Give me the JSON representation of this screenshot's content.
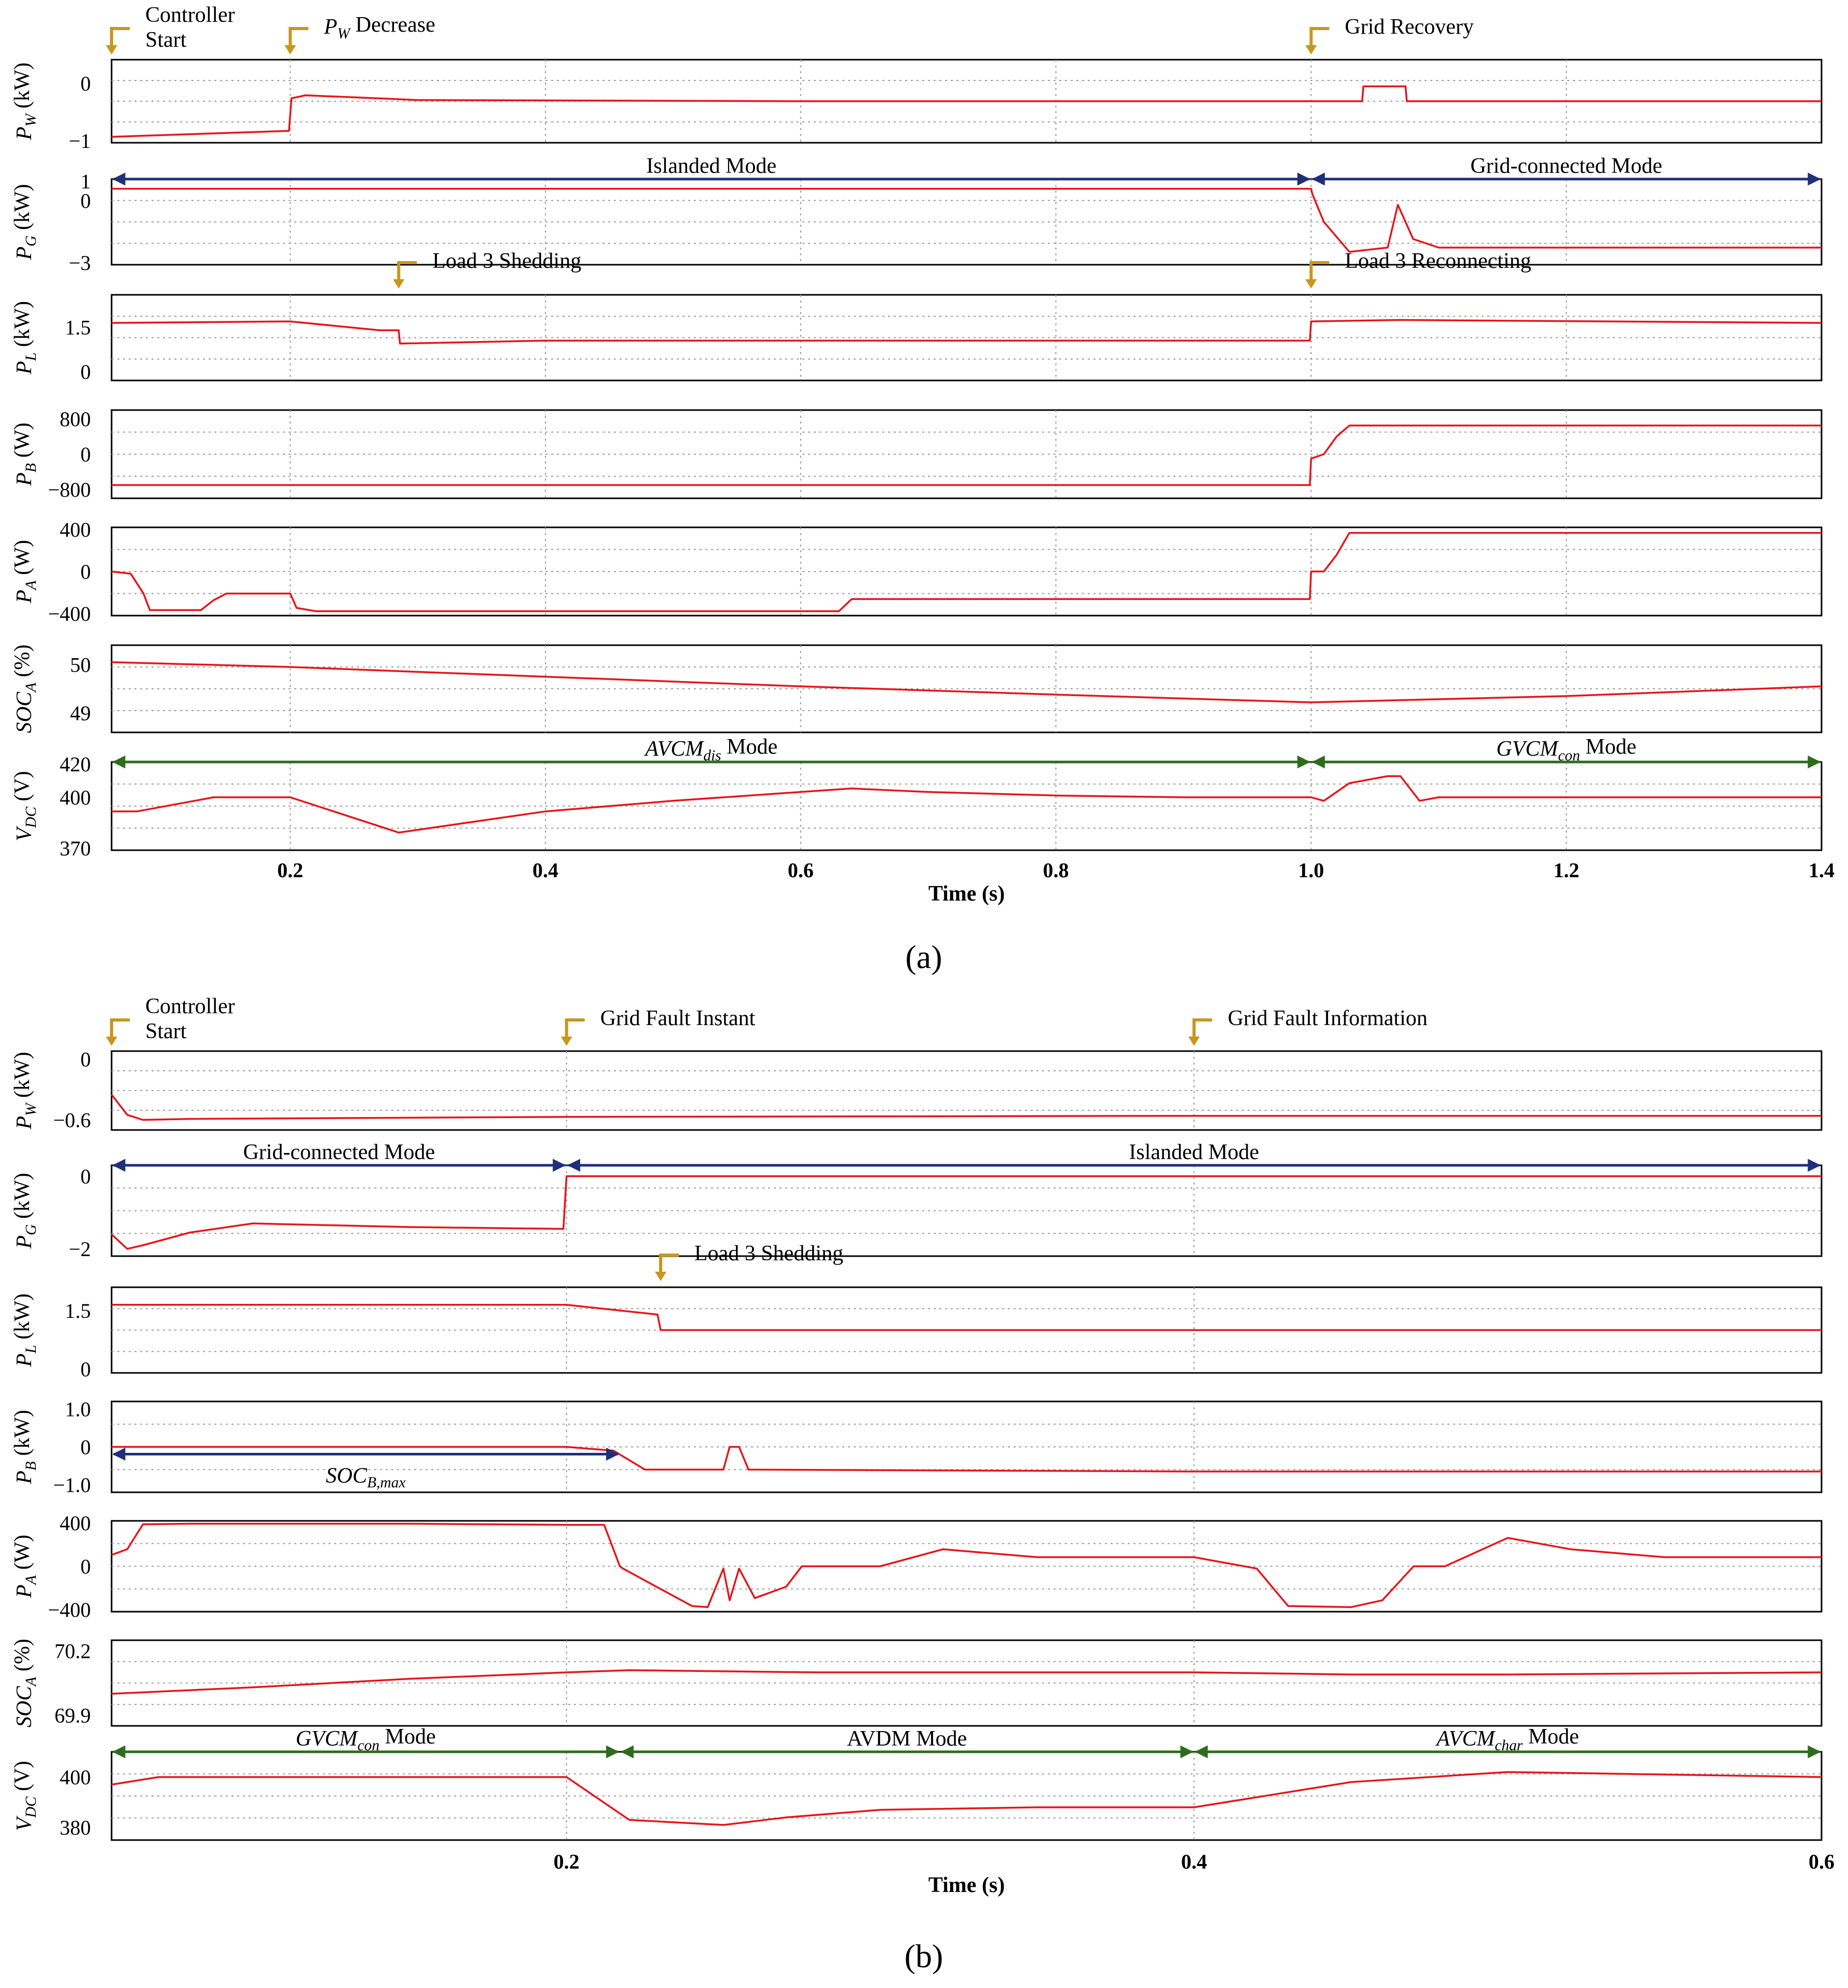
{
  "colors": {
    "trace": "#e8131a",
    "grid": "#9a9a9a",
    "navy": "#1f2f7a",
    "green": "#2e6b1d",
    "marker": "#c9961c"
  },
  "figure": {
    "panel_a_label": "(a)",
    "panel_b_label": "(b)"
  },
  "chart_data": [
    {
      "id": "a",
      "type": "line",
      "title": "",
      "xlabel": "Time (s)",
      "xlim": [
        0.06,
        1.4
      ],
      "xticks": [
        0.2,
        0.4,
        0.6,
        0.8,
        1.0,
        1.2,
        1.4
      ],
      "xtick_labels": [
        "0.2",
        "0.4",
        "0.6",
        "0.8",
        "1.0",
        "1.2",
        "1.4"
      ],
      "events": [
        {
          "label": "Controller\nStart",
          "x": 0.06
        },
        {
          "label": "P_W Decrease",
          "x": 0.2
        },
        {
          "label": "Grid Recovery",
          "x": 1.0
        },
        {
          "label": "Load 3 Shedding",
          "x": 0.285,
          "subplot": 2
        },
        {
          "label": "Load 3 Reconnecting",
          "x": 1.0,
          "subplot": 2
        }
      ],
      "subplots": [
        {
          "ylabel": "P_W (kW)",
          "ylim": [
            -1,
            0.4
          ],
          "yticks": [
            0,
            -1
          ],
          "ytick_labels": [
            "0",
            "−1"
          ],
          "series": [
            {
              "name": "P_W",
              "x": [
                0.06,
                0.199,
                0.201,
                0.212,
                0.3,
                0.6,
                1.0,
                1.04,
                1.041,
                1.074,
                1.075,
                1.4
              ],
              "y": [
                -0.9,
                -0.8,
                -0.25,
                -0.2,
                -0.28,
                -0.3,
                -0.3,
                -0.3,
                -0.05,
                -0.05,
                -0.3,
                -0.3
              ]
            }
          ]
        },
        {
          "ylabel": "P_G (kW)",
          "ylim": [
            -3,
            1
          ],
          "yticks": [
            1,
            0,
            -3
          ],
          "ytick_labels": [
            "1",
            "0",
            "−3"
          ],
          "modes": [
            {
              "label": "Islanded Mode",
              "x0": 0.06,
              "x1": 1.0,
              "color": "navy"
            },
            {
              "label": "Grid-connected Mode",
              "x0": 1.0,
              "x1": 1.4,
              "color": "navy"
            }
          ],
          "series": [
            {
              "name": "P_G",
              "x": [
                0.06,
                1.0,
                1.001,
                1.01,
                1.03,
                1.06,
                1.068,
                1.08,
                1.1,
                1.2,
                1.4
              ],
              "y": [
                0.55,
                0.55,
                0.3,
                -1.0,
                -2.4,
                -2.2,
                -0.2,
                -1.8,
                -2.2,
                -2.2,
                -2.2
              ]
            }
          ]
        },
        {
          "ylabel": "P_L (kW)",
          "ylim": [
            -0.3,
            2.6
          ],
          "yticks": [
            1.5,
            0
          ],
          "ytick_labels": [
            "1.5",
            "0"
          ],
          "series": [
            {
              "name": "P_L",
              "x": [
                0.06,
                0.2,
                0.27,
                0.285,
                0.286,
                0.4,
                0.6,
                0.999,
                1.0,
                1.07,
                1.4
              ],
              "y": [
                1.65,
                1.7,
                1.4,
                1.4,
                0.95,
                1.05,
                1.05,
                1.05,
                1.7,
                1.75,
                1.65
              ]
            }
          ]
        },
        {
          "ylabel": "P_B (W)",
          "ylim": [
            -1000,
            1000
          ],
          "yticks": [
            800,
            0,
            -800
          ],
          "ytick_labels": [
            "800",
            "0",
            "−800"
          ],
          "series": [
            {
              "name": "P_B",
              "x": [
                0.06,
                0.5,
                0.999,
                1.0,
                1.01,
                1.02,
                1.03,
                1.4
              ],
              "y": [
                -700,
                -700,
                -700,
                -100,
                0,
                400,
                650,
                650
              ]
            }
          ]
        },
        {
          "ylabel": "P_A (W)",
          "ylim": [
            -400,
            400
          ],
          "yticks": [
            400,
            0,
            -400
          ],
          "ytick_labels": [
            "400",
            "0",
            "−400"
          ],
          "series": [
            {
              "name": "P_A",
              "x": [
                0.06,
                0.075,
                0.085,
                0.09,
                0.13,
                0.14,
                0.15,
                0.2,
                0.205,
                0.22,
                0.5,
                0.63,
                0.64,
                0.999,
                1.0,
                1.01,
                1.02,
                1.03,
                1.4
              ],
              "y": [
                0,
                -20,
                -200,
                -350,
                -350,
                -260,
                -200,
                -200,
                -330,
                -360,
                -360,
                -360,
                -250,
                -250,
                0,
                0,
                150,
                350,
                350
              ]
            }
          ]
        },
        {
          "ylabel": "SOC_A (%)",
          "ylim": [
            48.6,
            50.4
          ],
          "yticks": [
            50,
            49
          ],
          "ytick_labels": [
            "50",
            "49"
          ],
          "series": [
            {
              "name": "SOC_A",
              "x": [
                0.06,
                0.2,
                0.4,
                0.6,
                0.8,
                1.0,
                1.2,
                1.4
              ],
              "y": [
                50.05,
                49.95,
                49.75,
                49.55,
                49.38,
                49.22,
                49.35,
                49.55
              ]
            }
          ]
        },
        {
          "ylabel": "V_DC (V)",
          "ylim": [
            370,
            420
          ],
          "yticks": [
            420,
            400,
            370
          ],
          "ytick_labels": [
            "420",
            "400",
            "370"
          ],
          "modes": [
            {
              "label": "AVCM_dis Mode",
              "x0": 0.06,
              "x1": 1.0,
              "color": "green"
            },
            {
              "label": "GVCM_con Mode",
              "x0": 1.0,
              "x1": 1.4,
              "color": "green"
            }
          ],
          "series": [
            {
              "name": "V_DC",
              "x": [
                0.06,
                0.08,
                0.14,
                0.2,
                0.285,
                0.4,
                0.5,
                0.6,
                0.64,
                0.7,
                0.8,
                0.9,
                1.0,
                1.01,
                1.03,
                1.06,
                1.07,
                1.085,
                1.1,
                1.4
              ],
              "y": [
                392,
                392,
                400,
                400,
                380,
                392,
                398,
                403,
                405,
                403,
                401,
                400,
                400,
                398,
                408,
                412,
                412,
                398,
                400,
                400
              ]
            }
          ]
        }
      ]
    },
    {
      "id": "b",
      "type": "line",
      "title": "",
      "xlabel": "Time (s)",
      "xlim": [
        0.055,
        0.6
      ],
      "xticks": [
        0.2,
        0.4,
        0.6
      ],
      "xtick_labels": [
        "0.2",
        "0.4",
        "0.6"
      ],
      "events": [
        {
          "label": "Controller\nStart",
          "x": 0.055
        },
        {
          "label": "Grid Fault Instant",
          "x": 0.2
        },
        {
          "label": "Grid Fault Information",
          "x": 0.4
        },
        {
          "label": "Load 3 Shedding",
          "x": 0.23,
          "subplot": 2
        }
      ],
      "subplots": [
        {
          "ylabel": "P_W (kW)",
          "ylim": [
            -0.7,
            0.08
          ],
          "yticks": [
            0,
            -0.6
          ],
          "ytick_labels": [
            "0",
            "−0.6"
          ],
          "series": [
            {
              "name": "P_W",
              "x": [
                0.055,
                0.06,
                0.065,
                0.08,
                0.2,
                0.4,
                0.6
              ],
              "y": [
                -0.35,
                -0.55,
                -0.6,
                -0.59,
                -0.57,
                -0.56,
                -0.56
              ]
            }
          ]
        },
        {
          "ylabel": "P_G (kW)",
          "ylim": [
            -2.2,
            0.3
          ],
          "yticks": [
            0,
            -2
          ],
          "ytick_labels": [
            "0",
            "−2"
          ],
          "modes": [
            {
              "label": "Grid-connected Mode",
              "x0": 0.055,
              "x1": 0.2,
              "color": "navy"
            },
            {
              "label": "Islanded Mode",
              "x0": 0.2,
              "x1": 0.6,
              "color": "navy"
            }
          ],
          "series": [
            {
              "name": "P_G",
              "x": [
                0.055,
                0.06,
                0.065,
                0.08,
                0.1,
                0.15,
                0.199,
                0.2,
                0.6
              ],
              "y": [
                -1.6,
                -2.0,
                -1.9,
                -1.55,
                -1.3,
                -1.4,
                -1.45,
                0,
                0
              ]
            }
          ]
        },
        {
          "ylabel": "P_L (kW)",
          "ylim": [
            -0.1,
            2.1
          ],
          "yticks": [
            1.5,
            0
          ],
          "ytick_labels": [
            "1.5",
            "0"
          ],
          "series": [
            {
              "name": "P_L",
              "x": [
                0.055,
                0.2,
                0.229,
                0.23,
                0.4,
                0.6
              ],
              "y": [
                1.65,
                1.65,
                1.4,
                1.0,
                1.0,
                1.0
              ]
            }
          ]
        },
        {
          "ylabel": "P_B (kW)",
          "ylim": [
            -1.2,
            1.2
          ],
          "yticks": [
            1.0,
            0,
            -1.0
          ],
          "ytick_labels": [
            "1.0",
            "0",
            "−1.0"
          ],
          "modes": [
            {
              "label": "SOC_B,max",
              "x0": 0.055,
              "x1": 0.217,
              "color": "navy",
              "below": true
            }
          ],
          "series": [
            {
              "name": "P_B",
              "x": [
                0.055,
                0.2,
                0.215,
                0.225,
                0.25,
                0.252,
                0.255,
                0.258,
                0.4,
                0.6
              ],
              "y": [
                0,
                0,
                -0.1,
                -0.6,
                -0.6,
                0,
                0,
                -0.6,
                -0.65,
                -0.65
              ]
            }
          ]
        },
        {
          "ylabel": "P_A (W)",
          "ylim": [
            -400,
            400
          ],
          "yticks": [
            400,
            0,
            -400
          ],
          "ytick_labels": [
            "400",
            "0",
            "−400"
          ],
          "series": [
            {
              "name": "P_A",
              "x": [
                0.055,
                0.06,
                0.065,
                0.08,
                0.15,
                0.2,
                0.212,
                0.217,
                0.218,
                0.23,
                0.24,
                0.245,
                0.25,
                0.252,
                0.255,
                0.26,
                0.27,
                0.275,
                0.3,
                0.32,
                0.35,
                0.4,
                0.42,
                0.43,
                0.45,
                0.46,
                0.47,
                0.48,
                0.5,
                0.52,
                0.55,
                0.6
              ],
              "y": [
                100,
                150,
                370,
                375,
                375,
                365,
                365,
                0,
                -20,
                -200,
                -350,
                -360,
                -20,
                -300,
                -20,
                -280,
                -180,
                0,
                0,
                150,
                80,
                80,
                -20,
                -350,
                -360,
                -300,
                0,
                0,
                250,
                150,
                80,
                80
              ]
            }
          ]
        },
        {
          "ylabel": "SOC_A (%)",
          "ylim": [
            69.85,
            70.25
          ],
          "yticks": [
            70.2,
            69.9
          ],
          "ytick_labels": [
            "70.2",
            "69.9"
          ],
          "series": [
            {
              "name": "SOC_A",
              "x": [
                0.055,
                0.1,
                0.15,
                0.2,
                0.22,
                0.28,
                0.35,
                0.4,
                0.45,
                0.5,
                0.6
              ],
              "y": [
                70.0,
                70.03,
                70.07,
                70.1,
                70.11,
                70.1,
                70.1,
                70.1,
                70.09,
                70.09,
                70.1
              ]
            }
          ]
        },
        {
          "ylabel": "V_DC (V)",
          "ylim": [
            375,
            410
          ],
          "yticks": [
            400,
            380
          ],
          "ytick_labels": [
            "400",
            "380"
          ],
          "modes": [
            {
              "label": "GVCM_con Mode",
              "x0": 0.055,
              "x1": 0.217,
              "color": "green"
            },
            {
              "label": "AVDM Mode",
              "x0": 0.217,
              "x1": 0.4,
              "color": "green"
            },
            {
              "label": "AVCM_char Mode",
              "x0": 0.4,
              "x1": 0.6,
              "color": "green"
            }
          ],
          "series": [
            {
              "name": "V_DC",
              "x": [
                0.055,
                0.07,
                0.2,
                0.22,
                0.25,
                0.27,
                0.3,
                0.35,
                0.38,
                0.4,
                0.45,
                0.5,
                0.55,
                0.6
              ],
              "y": [
                397,
                400,
                400,
                383,
                381,
                384,
                387,
                388,
                388,
                388,
                398,
                402,
                401,
                400
              ]
            }
          ]
        }
      ]
    }
  ]
}
